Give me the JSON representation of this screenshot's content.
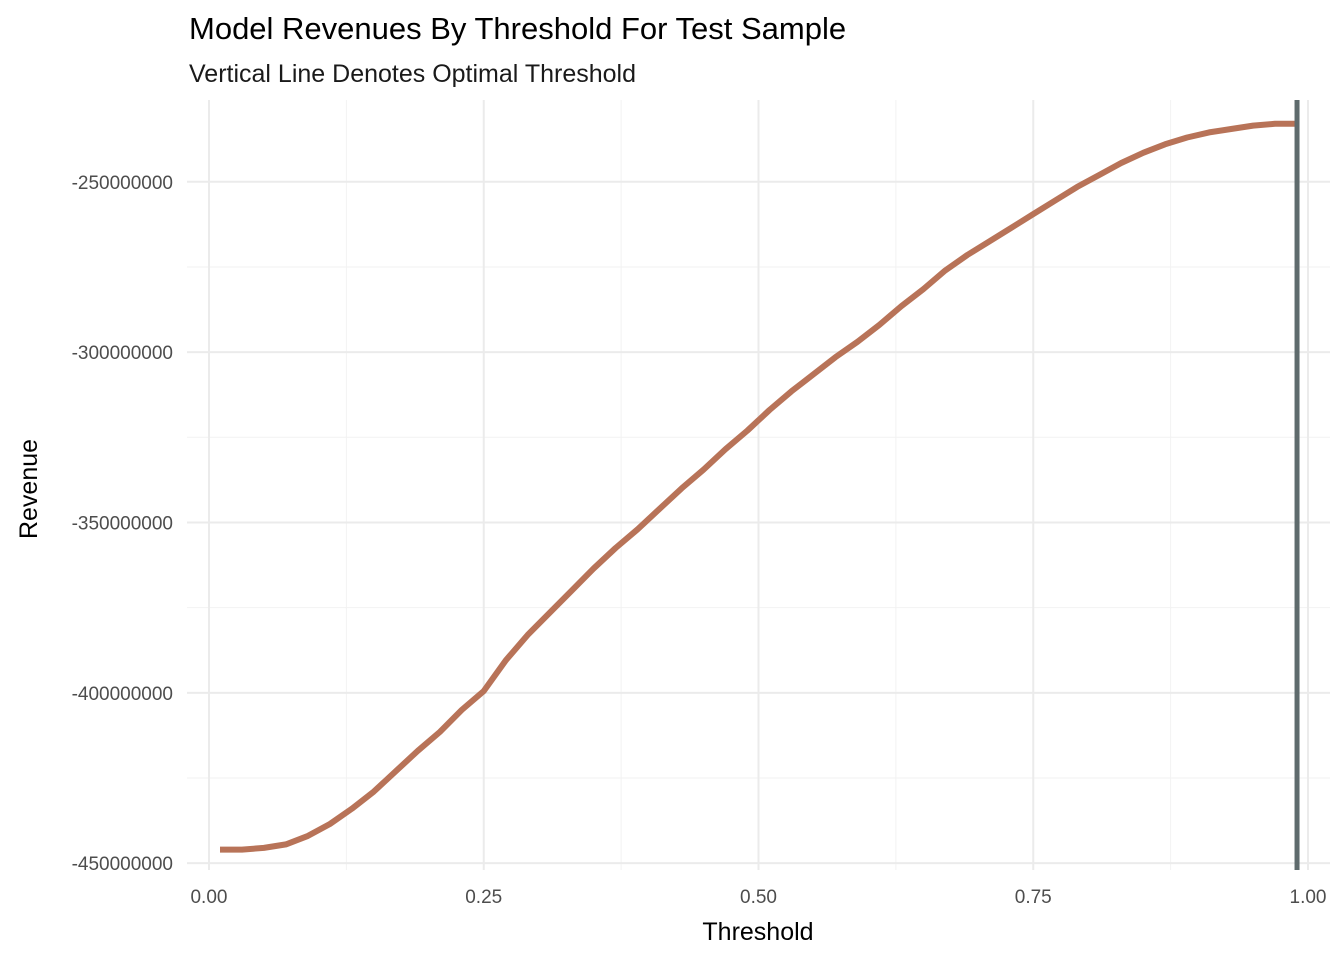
{
  "chart_data": {
    "type": "line",
    "title": "Model Revenues By Threshold For Test Sample",
    "subtitle": "Vertical Line Denotes Optimal Threshold",
    "xlabel": "Threshold",
    "ylabel": "Revenue",
    "xlim": [
      -0.02,
      1.02
    ],
    "ylim": [
      -452000000,
      -226000000
    ],
    "x_ticks": [
      0.0,
      0.25,
      0.5,
      0.75,
      1.0
    ],
    "x_tick_labels": [
      "0.00",
      "0.25",
      "0.50",
      "0.75",
      "1.00"
    ],
    "y_ticks": [
      -450000000,
      -400000000,
      -350000000,
      -300000000,
      -250000000
    ],
    "y_tick_labels": [
      "-450000000",
      "-400000000",
      "-350000000",
      "-300000000",
      "-250000000"
    ],
    "grid": true,
    "line_color": "#b87358",
    "vline_color": "#5f6b6d",
    "optimal_threshold": 0.99,
    "series": [
      {
        "x": [
          0.01,
          0.03,
          0.05,
          0.07,
          0.09,
          0.11,
          0.13,
          0.15,
          0.17,
          0.19,
          0.21,
          0.23,
          0.25,
          0.27,
          0.29,
          0.31,
          0.33,
          0.35,
          0.37,
          0.39,
          0.41,
          0.43,
          0.45,
          0.47,
          0.49,
          0.51,
          0.53,
          0.55,
          0.57,
          0.59,
          0.61,
          0.63,
          0.65,
          0.67,
          0.69,
          0.71,
          0.73,
          0.75,
          0.77,
          0.79,
          0.81,
          0.83,
          0.85,
          0.87,
          0.89,
          0.91,
          0.93,
          0.95,
          0.97,
          0.99
        ],
        "y": [
          -446000000,
          -446000000,
          -445500000,
          -444500000,
          -442000000,
          -438500000,
          -434000000,
          -429000000,
          -423000000,
          -417000000,
          -411500000,
          -405000000,
          -399500000,
          -390500000,
          -383000000,
          -376500000,
          -370000000,
          -363500000,
          -357500000,
          -352000000,
          -346000000,
          -340000000,
          -334500000,
          -328500000,
          -323000000,
          -317000000,
          -311500000,
          -306500000,
          -301500000,
          -297000000,
          -292000000,
          -286500000,
          -281500000,
          -276000000,
          -271500000,
          -267500000,
          -263500000,
          -259500000,
          -255500000,
          -251500000,
          -248000000,
          -244500000,
          -241500000,
          -239000000,
          -237000000,
          -235500000,
          -234500000,
          -233500000,
          -233000000,
          -233000000
        ]
      }
    ]
  }
}
